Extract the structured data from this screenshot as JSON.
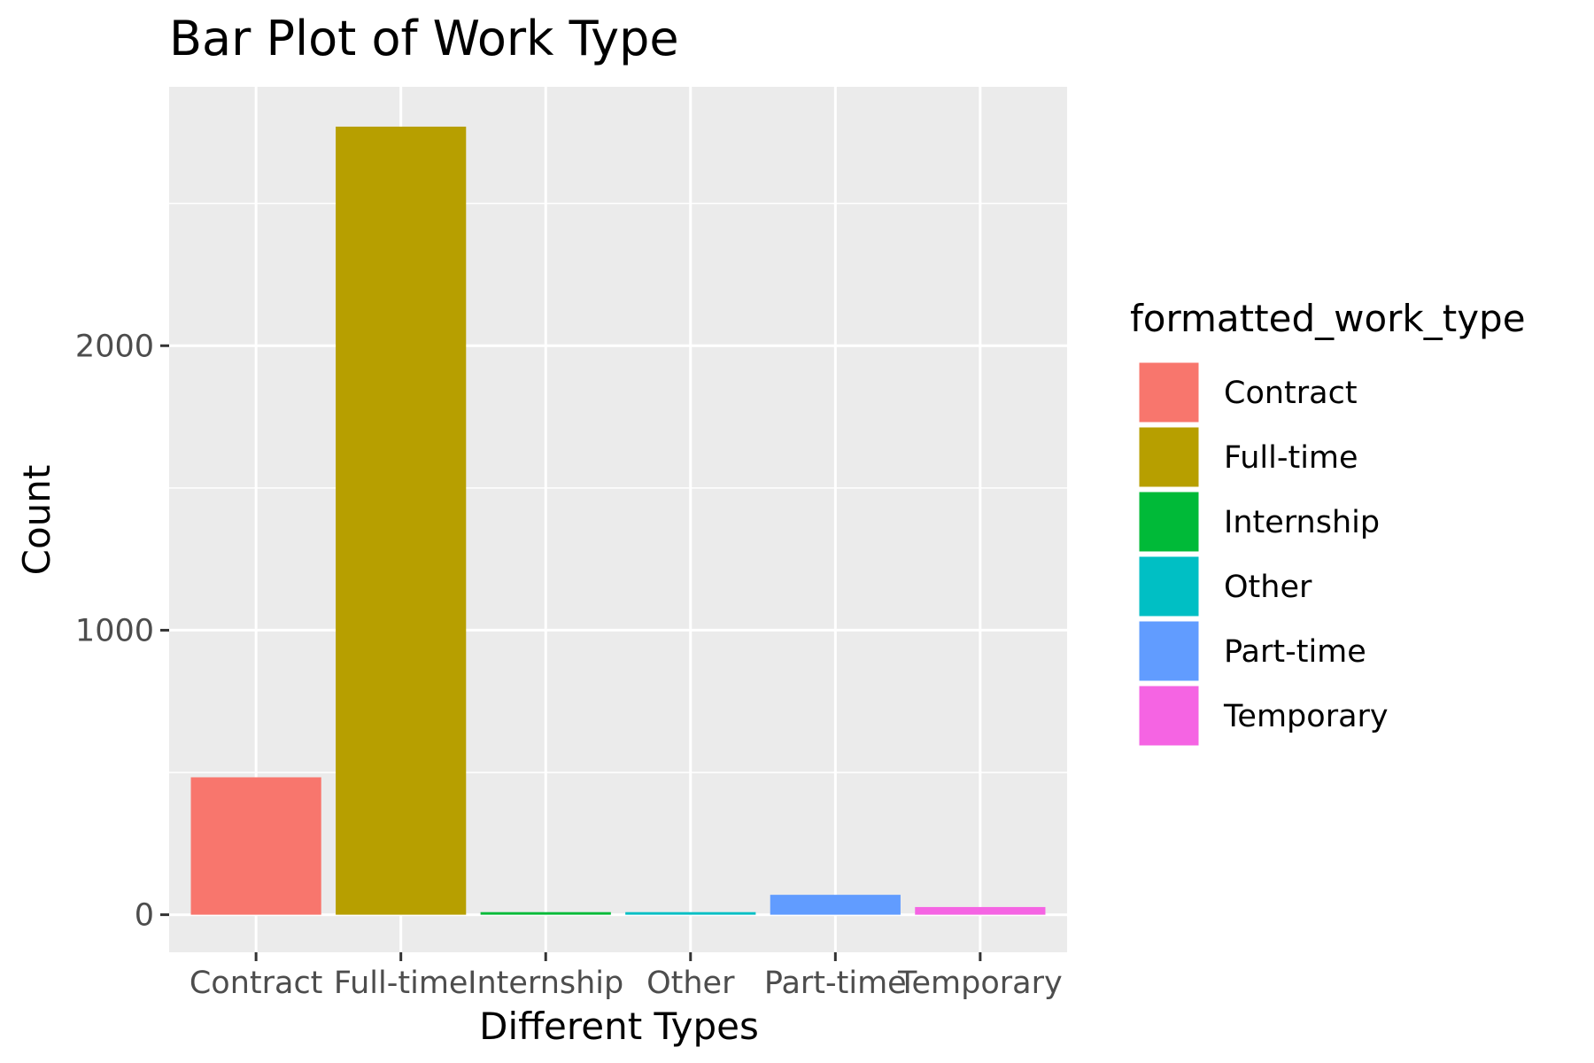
{
  "chart_data": {
    "type": "bar",
    "title": "Bar Plot of Work Type",
    "xlabel": "Different Types",
    "ylabel": "Count",
    "categories": [
      "Contract",
      "Full-time",
      "Internship",
      "Other",
      "Part-time",
      "Temporary"
    ],
    "values": [
      483,
      2770,
      9,
      9,
      70,
      27
    ],
    "colors": [
      "#F8766D",
      "#B79F00",
      "#00BA38",
      "#00BFC4",
      "#619CFF",
      "#F564E3"
    ],
    "ylim": [
      -132,
      2910
    ],
    "yticks": [
      0,
      1000,
      2000
    ],
    "ytick_labels": [
      "0",
      "1000",
      "2000"
    ],
    "grid": true,
    "panel_background": "#EBEBEB",
    "legend": {
      "title": "formatted_work_type",
      "position": "right",
      "items": [
        "Contract",
        "Full-time",
        "Internship",
        "Other",
        "Part-time",
        "Temporary"
      ]
    }
  }
}
